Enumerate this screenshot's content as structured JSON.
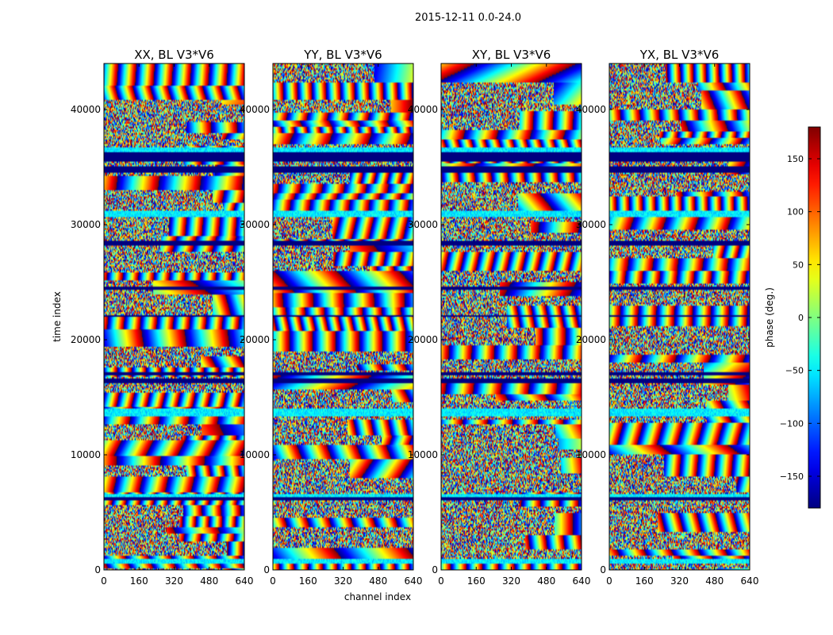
{
  "figure": {
    "suptitle": "2015-12-11 0.0-24.0"
  },
  "chart_data": {
    "type": "heatmap",
    "xlabel": "channel index",
    "ylabel": "time index",
    "xlim": [
      0,
      640
    ],
    "ylim": [
      0,
      44000
    ],
    "xticks": [
      0,
      160,
      320,
      480,
      640
    ],
    "yticks": [
      0,
      10000,
      20000,
      30000,
      40000
    ],
    "panels": [
      {
        "title": "XX, BL V3*V6",
        "seed": 11
      },
      {
        "title": "YY, BL V3*V6",
        "seed": 23
      },
      {
        "title": "XY, BL V3*V6",
        "seed": 37
      },
      {
        "title": "YX, BL V3*V6",
        "seed": 51
      }
    ],
    "colorbar": {
      "label": "phase (deg.)",
      "range": [
        -180,
        180
      ],
      "ticks": [
        -150,
        -100,
        -50,
        0,
        50,
        100,
        150
      ],
      "colormap": "jet"
    },
    "gap_bands": [
      [
        34600,
        35000
      ],
      [
        35500,
        35900
      ],
      [
        16300,
        16600
      ],
      [
        28300,
        28500
      ],
      [
        6100,
        6300
      ],
      [
        24400,
        24550
      ],
      [
        17000,
        17150
      ],
      [
        22000,
        22100
      ],
      [
        36100,
        36300
      ]
    ],
    "cyan_bands": [
      [
        36300,
        36600
      ],
      [
        13400,
        13900
      ],
      [
        30700,
        31200
      ],
      [
        600,
        900
      ],
      [
        6400,
        6600
      ]
    ]
  }
}
